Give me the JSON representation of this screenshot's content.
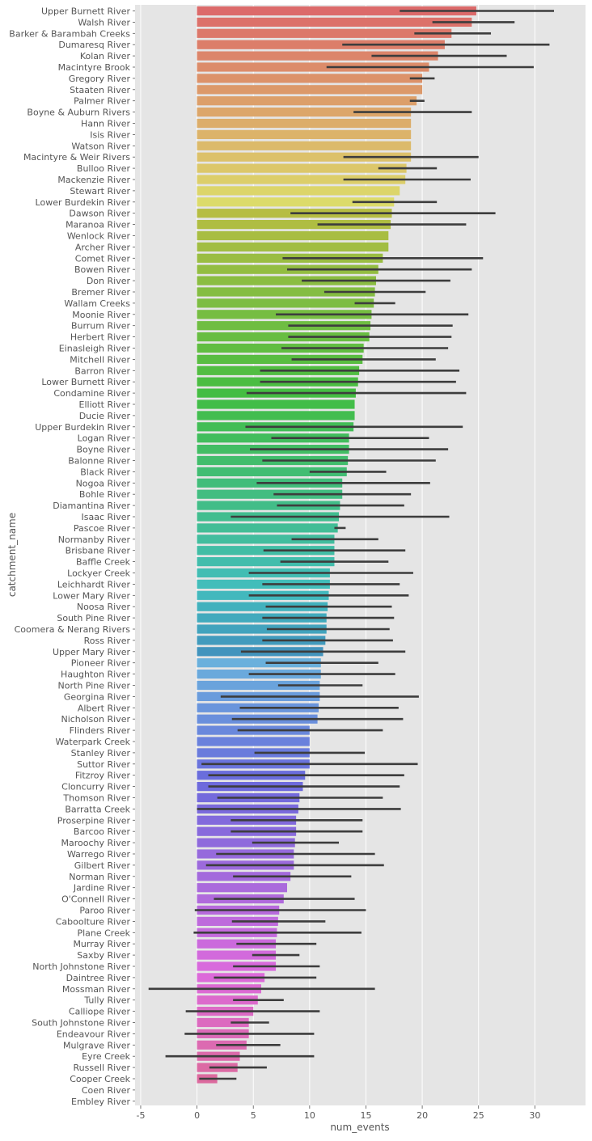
{
  "chart_data": {
    "type": "bar",
    "orientation": "horizontal",
    "xlabel": "num_events",
    "ylabel": "catchment_name",
    "xlim": [
      -5.5,
      34.5
    ],
    "xticks": [
      -5,
      0,
      5,
      10,
      15,
      20,
      25,
      30
    ],
    "grid": true,
    "legend": "none",
    "error_bar_color": "#3d3d3d",
    "background_color": "#e5e5e5",
    "categories": [
      "Upper Burnett River",
      "Walsh River",
      "Barker & Barambah Creeks",
      "Dumaresq River",
      "Kolan River",
      "Macintyre Brook",
      "Gregory River",
      "Staaten River",
      "Palmer River",
      "Boyne & Auburn Rivers",
      "Hann River",
      "Isis River",
      "Watson River",
      "Macintyre & Weir Rivers",
      "Bulloo River",
      "Mackenzie River",
      "Stewart River",
      "Lower Burdekin River",
      "Dawson River",
      "Maranoa River",
      "Wenlock River",
      "Archer River",
      "Comet River",
      "Bowen River",
      "Don River",
      "Bremer River",
      "Wallam Creeks",
      "Moonie River",
      "Burrum River",
      "Herbert River",
      "Einasleigh River",
      "Mitchell River",
      "Barron River",
      "Lower Burnett River",
      "Condamine River",
      "Elliott River",
      "Ducie River",
      "Upper Burdekin River",
      "Logan River",
      "Boyne River",
      "Balonne River",
      "Black River",
      "Nogoa River",
      "Bohle River",
      "Diamantina River",
      "Isaac River",
      "Pascoe River",
      "Normanby River",
      "Brisbane River",
      "Baffle Creek",
      "Lockyer Creek",
      "Leichhardt River",
      "Lower Mary River",
      "Noosa River",
      "South Pine River",
      "Coomera & Nerang Rivers",
      "Ross River",
      "Upper Mary River",
      "Pioneer River",
      "Haughton River",
      "North Pine River",
      "Georgina River",
      "Albert River",
      "Nicholson River",
      "Flinders River",
      "Waterpark Creek",
      "Stanley River",
      "Suttor River",
      "Fitzroy River",
      "Cloncurry River",
      "Thomson River",
      "Barratta Creek",
      "Proserpine River",
      "Barcoo River",
      "Maroochy River",
      "Warrego River",
      "Gilbert River",
      "Norman River",
      "Jardine River",
      "O'Connell River",
      "Paroo River",
      "Caboolture River",
      "Plane Creek",
      "Murray River",
      "Saxby River",
      "North Johnstone River",
      "Daintree River",
      "Mossman River",
      "Tully River",
      "Calliope River",
      "South Johnstone River",
      "Endeavour River",
      "Mulgrave River",
      "Eyre Creek",
      "Russell River",
      "Cooper Creek",
      "Coen River",
      "Embley River"
    ],
    "values": [
      24.8,
      24.4,
      22.6,
      22.0,
      21.4,
      20.6,
      20.0,
      20.0,
      19.5,
      19.0,
      19.0,
      19.0,
      19.0,
      19.0,
      18.6,
      18.5,
      18.0,
      17.5,
      17.3,
      17.2,
      17.0,
      17.0,
      16.5,
      16.1,
      15.9,
      15.8,
      15.7,
      15.5,
      15.4,
      15.3,
      14.8,
      14.7,
      14.4,
      14.3,
      14.1,
      14.0,
      14.0,
      13.9,
      13.5,
      13.5,
      13.4,
      13.3,
      12.9,
      12.9,
      12.7,
      12.6,
      12.5,
      12.2,
      12.2,
      12.2,
      11.8,
      11.8,
      11.7,
      11.6,
      11.5,
      11.5,
      11.4,
      11.2,
      11.0,
      11.0,
      10.9,
      10.9,
      10.8,
      10.7,
      10.0,
      10.0,
      10.0,
      10.0,
      9.6,
      9.4,
      9.1,
      9.0,
      8.8,
      8.8,
      8.7,
      8.6,
      8.6,
      8.3,
      8.0,
      7.7,
      7.3,
      7.2,
      7.1,
      7.0,
      7.0,
      7.0,
      6.0,
      5.7,
      5.4,
      5.0,
      4.6,
      4.6,
      4.4,
      3.8,
      3.6,
      1.8,
      0.0,
      0.0
    ],
    "error_low": [
      18.0,
      20.9,
      19.3,
      12.9,
      15.5,
      11.5,
      18.9,
      null,
      18.9,
      13.9,
      null,
      null,
      null,
      13.0,
      16.1,
      13.0,
      null,
      13.8,
      8.3,
      10.7,
      null,
      null,
      7.6,
      8.0,
      9.3,
      11.3,
      14.0,
      7.0,
      8.1,
      8.1,
      7.5,
      8.4,
      5.6,
      5.6,
      4.4,
      null,
      null,
      4.3,
      6.6,
      4.7,
      5.8,
      10.0,
      5.3,
      6.8,
      7.1,
      3.0,
      12.2,
      8.4,
      5.9,
      7.4,
      4.6,
      5.8,
      4.6,
      6.1,
      5.8,
      6.2,
      5.8,
      3.9,
      6.1,
      4.6,
      7.2,
      2.1,
      3.8,
      3.1,
      3.6,
      null,
      5.1,
      0.4,
      1.0,
      1.0,
      1.8,
      0.0,
      3.0,
      3.0,
      4.9,
      1.7,
      0.8,
      3.2,
      null,
      1.5,
      -0.2,
      3.1,
      -0.3,
      3.5,
      4.9,
      3.2,
      1.5,
      -4.3,
      3.2,
      -1.0,
      3.0,
      -1.1,
      1.7,
      -2.8,
      1.1,
      0.2,
      null,
      null
    ],
    "error_high": [
      31.7,
      28.2,
      26.1,
      31.3,
      27.5,
      29.9,
      21.1,
      null,
      20.2,
      24.4,
      null,
      null,
      null,
      25.0,
      21.3,
      24.3,
      null,
      21.3,
      26.5,
      23.9,
      null,
      null,
      25.4,
      24.4,
      22.5,
      20.3,
      17.6,
      24.1,
      22.7,
      22.6,
      22.3,
      21.2,
      23.3,
      23.0,
      23.9,
      null,
      null,
      23.6,
      20.6,
      22.3,
      21.2,
      16.8,
      20.7,
      19.0,
      18.4,
      22.4,
      13.2,
      16.1,
      18.5,
      17.0,
      19.2,
      18.0,
      18.8,
      17.3,
      17.5,
      17.1,
      17.4,
      18.5,
      16.1,
      17.6,
      14.7,
      19.7,
      17.9,
      18.3,
      16.5,
      null,
      14.9,
      19.6,
      18.4,
      18.0,
      16.5,
      18.1,
      14.7,
      14.7,
      12.6,
      15.8,
      16.6,
      13.7,
      null,
      14.0,
      15.0,
      11.4,
      14.6,
      10.6,
      9.1,
      10.9,
      10.6,
      15.8,
      7.7,
      10.9,
      6.4,
      10.4,
      7.4,
      10.4,
      6.2,
      3.5,
      null,
      null
    ]
  }
}
